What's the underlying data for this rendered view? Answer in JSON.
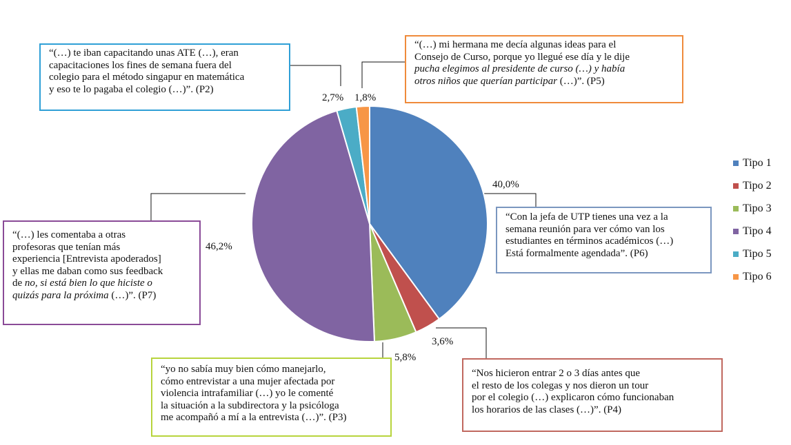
{
  "chart_data": {
    "type": "pie",
    "categories": [
      "Tipo 1",
      "Tipo 2",
      "Tipo 3",
      "Tipo 4",
      "Tipo 5",
      "Tipo 6"
    ],
    "values": [
      40.0,
      3.6,
      5.8,
      46.2,
      2.7,
      1.8
    ],
    "data_labels": [
      "40,0%",
      "3,6%",
      "5,8%",
      "46,2%",
      "2,7%",
      "1,8%"
    ],
    "colors": [
      "#4f81bd",
      "#c0504d",
      "#9bbb59",
      "#8064a2",
      "#4bacc6",
      "#f79646"
    ],
    "legend_position": "right",
    "title": ""
  },
  "quotes": {
    "p2": {
      "lines": [
        "“(…) te iban capacitando unas ATE (…), eran",
        "capacitaciones los fines de semana fuera del",
        "colegio para el método singapur en matemática",
        "y eso te lo pagaba el colegio (…)”. (P2)"
      ]
    },
    "p5": {
      "line1": "“(…) mi hermana me decía algunas ideas para el",
      "line2": "Consejo de Curso, porque yo llegué ese día y le dije",
      "line3_italic": "pucha elegimos al presidente de curso (…) y había",
      "line4_italic": "otros niños que querían participar",
      "line4_tail": " (…)”. (P5)"
    },
    "p6": {
      "lines": [
        "“Con la jefa de UTP tienes una vez a la",
        "semana reunión para ver cómo van los",
        "estudiantes en términos académicos (…)",
        "Está formalmente agendada”. (P6)"
      ]
    },
    "p7": {
      "line1": "“(…) les comentaba a otras",
      "line2": "profesoras que tenían más",
      "line3": "experiencia [Entrevista apoderados]",
      "line4": "y  ellas me daban como sus feedback",
      "line5_prefix": "de ",
      "line5_italic": "no, si está bien lo que hiciste o",
      "line6_italic": "quizás para la próxima",
      "line6_tail": " (…)”. (P7)"
    },
    "p3": {
      "lines": [
        "“yo no sabía muy bien cómo manejarlo,",
        "cómo entrevistar a una mujer afectada por",
        "violencia intrafamiliar (…) yo le comenté",
        "la situación a la subdirectora y la psicóloga",
        "me acompañó a mí a la entrevista (…)”.  (P3)"
      ]
    },
    "p4": {
      "lines": [
        "“Nos hicieron entrar 2 o 3 días antes que",
        "el resto de los colegas y nos dieron un tour",
        "por el colegio (…) explicaron cómo funcionaban",
        "los horarios de las clases (…)”. (P4)"
      ]
    }
  }
}
